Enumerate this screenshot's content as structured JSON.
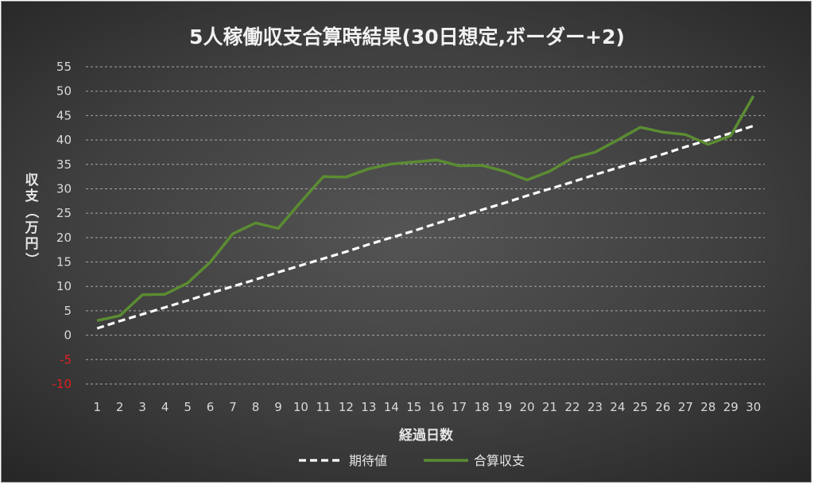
{
  "chart_data": {
    "type": "line",
    "title": "5人稼働収支合算時結果(30日想定,ボーダー+2)",
    "xlabel": "経過日数",
    "ylabel": "収支（万円）",
    "categories": [
      1,
      2,
      3,
      4,
      5,
      6,
      7,
      8,
      9,
      10,
      11,
      12,
      13,
      14,
      15,
      16,
      17,
      18,
      19,
      20,
      21,
      22,
      23,
      24,
      25,
      26,
      27,
      28,
      29,
      30
    ],
    "ylim": [
      -10,
      55
    ],
    "yticks": [
      55,
      50,
      45,
      40,
      35,
      30,
      25,
      20,
      15,
      10,
      5,
      0,
      -5,
      -10
    ],
    "negative_tick_color": "#e02020",
    "grid": true,
    "legend_position": "bottom",
    "series": [
      {
        "name": "期待値",
        "color": "#ffffff",
        "dashed": true,
        "values": [
          1.4,
          2.9,
          4.3,
          5.7,
          7.1,
          8.6,
          10.0,
          11.4,
          12.9,
          14.3,
          15.7,
          17.1,
          18.6,
          20.0,
          21.4,
          22.9,
          24.3,
          25.7,
          27.1,
          28.6,
          30.0,
          31.4,
          32.9,
          34.3,
          35.7,
          37.1,
          38.6,
          40.0,
          41.4,
          42.9
        ]
      },
      {
        "name": "合算収支",
        "color": "#5b8c32",
        "dashed": false,
        "values": [
          3.0,
          4.0,
          8.3,
          8.4,
          10.7,
          15.0,
          20.8,
          23.0,
          21.9,
          27.3,
          32.5,
          32.4,
          34.1,
          35.1,
          35.5,
          35.9,
          34.7,
          34.8,
          33.6,
          31.8,
          33.6,
          36.3,
          37.5,
          40.0,
          42.6,
          41.6,
          41.1,
          39.1,
          40.9,
          49.0
        ]
      }
    ]
  }
}
